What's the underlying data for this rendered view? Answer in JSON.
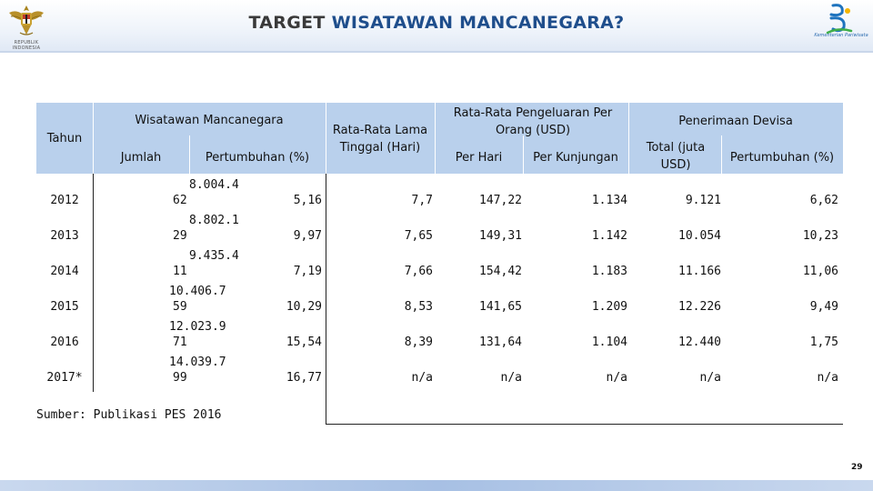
{
  "header": {
    "title_part1": "TARGET",
    "title_part2": "WISATAWAN MANCANEGARA?",
    "left_logo_caption": "REPUBLIK INDONESIA",
    "right_logo_caption": "Kementerian Pariwisata"
  },
  "table": {
    "headers": {
      "tahun": "Tahun",
      "wisman": "Wisatawan Mancanegara",
      "jumlah": "Jumlah",
      "pertumbuhan": "Pertumbuhan (%)",
      "lama_tinggal": "Rata-Rata Lama Tinggal (Hari)",
      "pengeluaran": "Rata-Rata Pengeluaran Per Orang (USD)",
      "per_hari": "Per Hari",
      "per_kunjungan": "Per Kunjungan",
      "devisa": "Penerimaan Devisa",
      "total": "Total (juta USD)",
      "devisa_pertumbuhan": "Pertumbuhan (%)"
    },
    "rows": [
      {
        "tahun": "2012",
        "jumlah_a": "8.004.4",
        "jumlah_b": "62",
        "pertumbuhan": "5,16",
        "lama": "7,7",
        "per_hari": "147,22",
        "per_kunjungan": "1.134",
        "total": "9.121",
        "devisa_pertumbuhan": "6,62"
      },
      {
        "tahun": "2013",
        "jumlah_a": "8.802.1",
        "jumlah_b": "29",
        "pertumbuhan": "9,97",
        "lama": "7,65",
        "per_hari": "149,31",
        "per_kunjungan": "1.142",
        "total": "10.054",
        "devisa_pertumbuhan": "10,23"
      },
      {
        "tahun": "2014",
        "jumlah_a": "9.435.4",
        "jumlah_b": "11",
        "pertumbuhan": "7,19",
        "lama": "7,66",
        "per_hari": "154,42",
        "per_kunjungan": "1.183",
        "total": "11.166",
        "devisa_pertumbuhan": "11,06"
      },
      {
        "tahun": "2015",
        "jumlah_a": "10.406.7",
        "jumlah_b": "59",
        "pertumbuhan": "10,29",
        "lama": "8,53",
        "per_hari": "141,65",
        "per_kunjungan": "1.209",
        "total": "12.226",
        "devisa_pertumbuhan": "9,49"
      },
      {
        "tahun": "2016",
        "jumlah_a": "12.023.9",
        "jumlah_b": "71",
        "pertumbuhan": "15,54",
        "lama": "8,39",
        "per_hari": "131,64",
        "per_kunjungan": "1.104",
        "total": "12.440",
        "devisa_pertumbuhan": "1,75"
      },
      {
        "tahun": "2017*",
        "jumlah_a": "14.039.7",
        "jumlah_b": "99",
        "pertumbuhan": "16,77",
        "lama": "n/a",
        "per_hari": "n/a",
        "per_kunjungan": "n/a",
        "total": "n/a",
        "devisa_pertumbuhan": "n/a"
      }
    ]
  },
  "source": "Sumber: Publikasi PES 2016",
  "page_number": "29",
  "colors": {
    "header_fill": "#b9d0ec",
    "title_dark": "#3a3a3a",
    "title_blue": "#1f4e8c"
  }
}
